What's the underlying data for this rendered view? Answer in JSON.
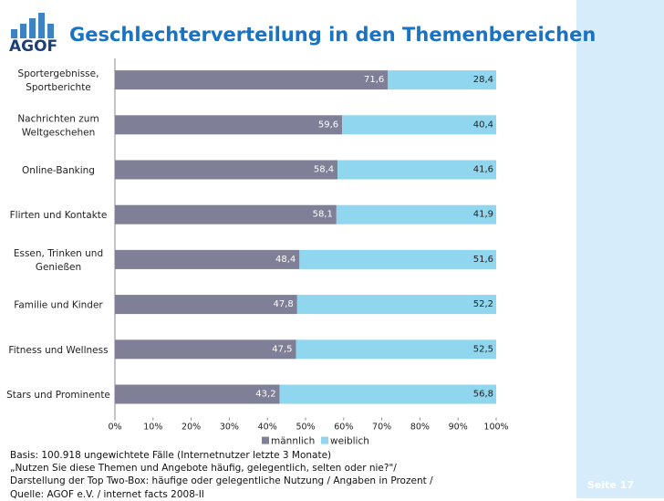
{
  "logo": {
    "text": "AGOF"
  },
  "title": "Geschlechterverteilung in den Themenbereichen",
  "colors": {
    "male": "#7f7f97",
    "female": "#8fd6ee",
    "title": "#1a73c2",
    "strip": "#d6ecfa"
  },
  "chart_data": {
    "type": "bar",
    "orientation": "horizontal",
    "stacked": true,
    "categories": [
      [
        "Sportergebnisse,",
        "Sportberichte"
      ],
      [
        "Nachrichten zum",
        "Weltgeschehen"
      ],
      [
        "Online-Banking"
      ],
      [
        "Flirten und Kontakte"
      ],
      [
        "Essen, Trinken und",
        "Genießen"
      ],
      [
        "Familie und Kinder"
      ],
      [
        "Fitness und Wellness"
      ],
      [
        "Stars und Prominente"
      ]
    ],
    "series": [
      {
        "name": "männlich",
        "values": [
          71.6,
          59.6,
          58.4,
          58.1,
          48.4,
          47.8,
          47.5,
          43.2
        ],
        "labels": [
          "71,6",
          "59,6",
          "58,4",
          "58,1",
          "48,4",
          "47,8",
          "47,5",
          "43,2"
        ]
      },
      {
        "name": "weiblich",
        "values": [
          28.4,
          40.4,
          41.6,
          41.9,
          51.6,
          52.2,
          52.5,
          56.8
        ],
        "labels": [
          "28,4",
          "40,4",
          "41,6",
          "41,9",
          "51,6",
          "52,2",
          "52,5",
          "56,8"
        ]
      }
    ],
    "xlim": [
      0,
      100
    ],
    "xticks": [
      "0%",
      "10%",
      "20%",
      "30%",
      "40%",
      "50%",
      "60%",
      "70%",
      "80%",
      "90%",
      "100%"
    ],
    "legend": "bottom"
  },
  "notes": [
    "Basis: 100.918 ungewichtete Fälle (Internetnutzer letzte 3 Monate)",
    "„Nutzen Sie diese Themen und Angebote häufig, gelegentlich, selten oder nie?\"/",
    "Darstellung der Top Two-Box: häufige oder gelegentliche Nutzung / Angaben in Prozent /",
    "Quelle: AGOF e.V. / internet facts 2008-II"
  ],
  "page_label": "Seite 17"
}
